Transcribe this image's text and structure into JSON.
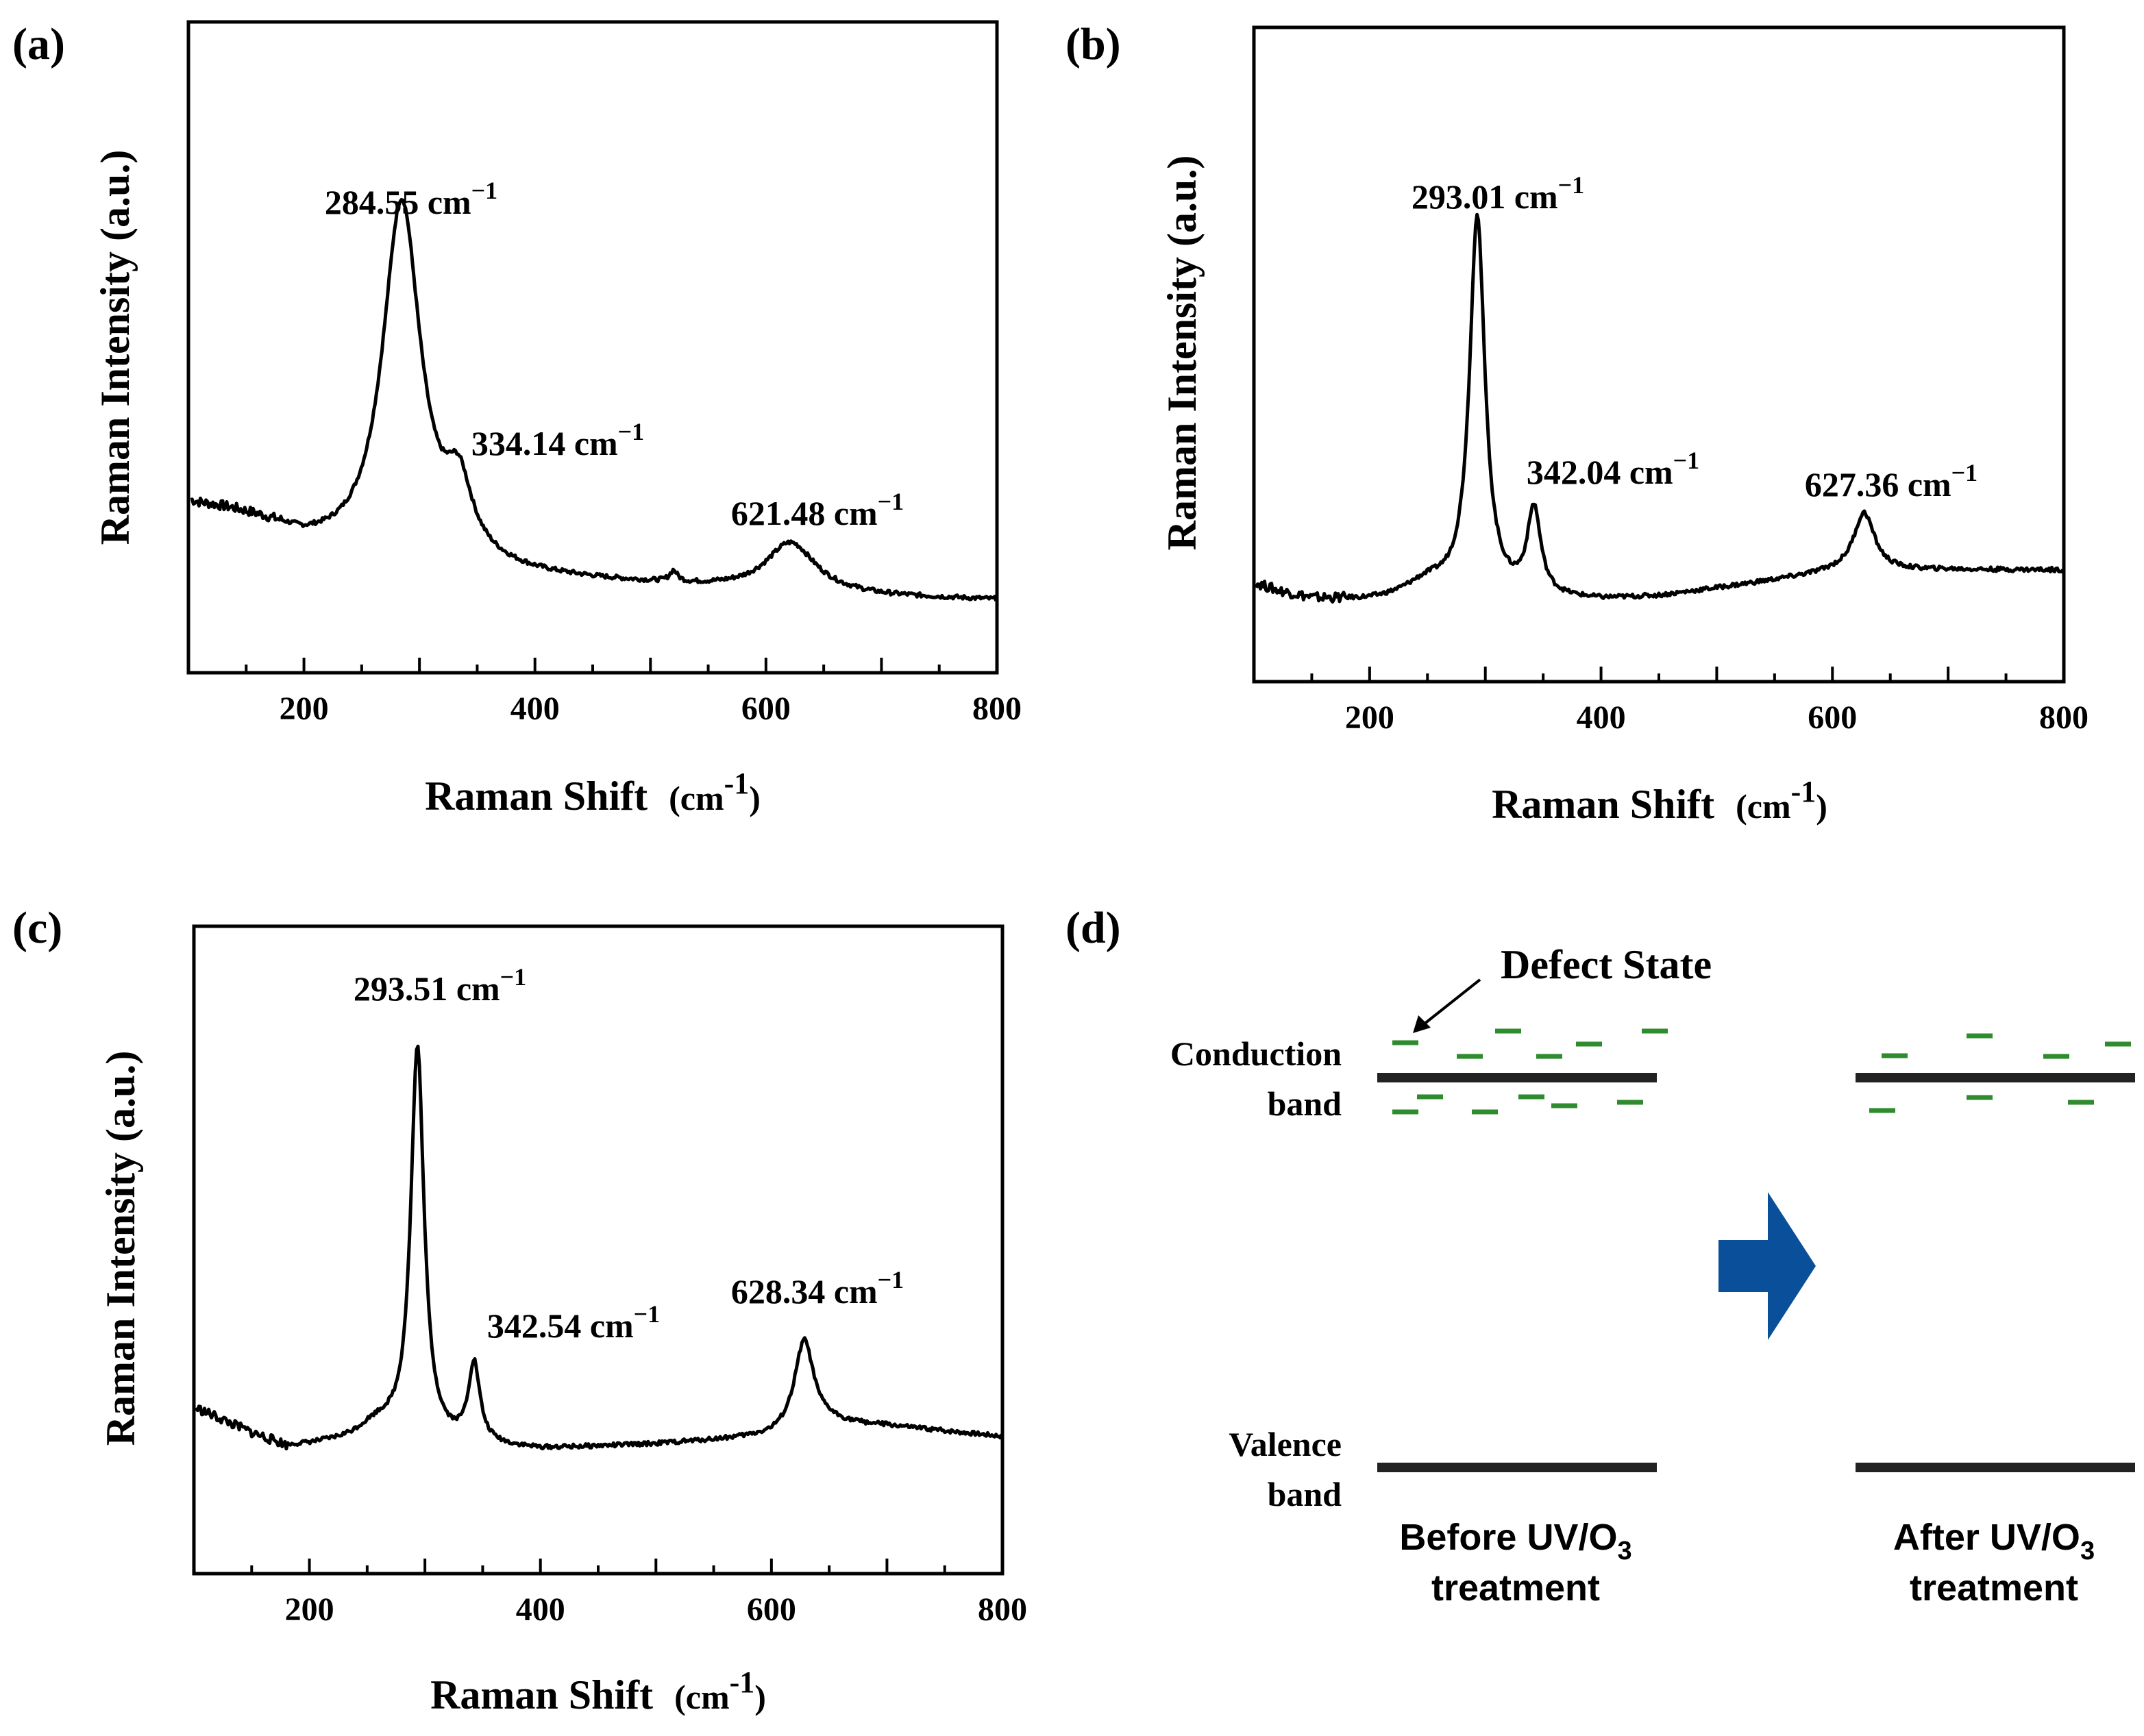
{
  "chart_data": [
    {
      "type": "line",
      "panel_label": "(a)",
      "xlabel": "Raman Shift",
      "xlabel_unit_open": "(cm",
      "xlabel_unit_exp": "-1",
      "xlabel_unit_close": ")",
      "ylabel": "Raman Intensity (a.u.)",
      "xlim": [
        100,
        800
      ],
      "ylim": [
        0,
        1
      ],
      "xticks": [
        200,
        400,
        600,
        800
      ],
      "xtick_labels": [
        "200",
        "400",
        "600",
        "800"
      ],
      "baseline": [
        [
          100,
          0.2
        ],
        [
          110,
          0.19
        ],
        [
          130,
          0.175
        ],
        [
          150,
          0.16
        ],
        [
          200,
          0.125
        ],
        [
          250,
          0.115
        ],
        [
          300,
          0.11
        ],
        [
          400,
          0.095
        ],
        [
          500,
          0.085
        ],
        [
          600,
          0.075
        ],
        [
          700,
          0.065
        ],
        [
          800,
          0.06
        ]
      ],
      "peaks": [
        {
          "center": 284.55,
          "height": 0.66,
          "width": 20,
          "label": "284.55 cm",
          "exp": "−1"
        },
        {
          "center": 334.14,
          "height": 0.12,
          "width": 14,
          "label": "334.14 cm",
          "exp": "−1"
        },
        {
          "center": 621.48,
          "height": 0.09,
          "width": 26,
          "label": "621.48 cm",
          "exp": "−1"
        }
      ],
      "extras": [
        {
          "center": 150,
          "height": 0.05,
          "width": 90
        },
        {
          "center": 520,
          "height": 0.02,
          "width": 4
        }
      ]
    },
    {
      "type": "line",
      "panel_label": "(b)",
      "xlabel": "Raman Shift",
      "xlabel_unit_open": "(cm",
      "xlabel_unit_exp": "-1",
      "xlabel_unit_close": ")",
      "ylabel": "Raman Intensity (a.u.)",
      "xlim": [
        100,
        800
      ],
      "ylim": [
        0,
        1
      ],
      "xticks": [
        200,
        400,
        600,
        800
      ],
      "xtick_labels": [
        "200",
        "400",
        "600",
        "800"
      ],
      "baseline": [
        [
          100,
          0.11
        ],
        [
          120,
          0.095
        ],
        [
          150,
          0.08
        ],
        [
          200,
          0.075
        ],
        [
          250,
          0.078
        ],
        [
          300,
          0.08
        ],
        [
          400,
          0.078
        ],
        [
          450,
          0.085
        ],
        [
          500,
          0.1
        ],
        [
          550,
          0.115
        ],
        [
          600,
          0.13
        ],
        [
          700,
          0.135
        ],
        [
          800,
          0.135
        ]
      ],
      "peaks": [
        {
          "center": 293.01,
          "height": 0.71,
          "width": 8,
          "label": "293.01 cm",
          "exp": "−1"
        },
        {
          "center": 342.04,
          "height": 0.16,
          "width": 7,
          "label": "342.04 cm",
          "exp": "−1"
        },
        {
          "center": 627.36,
          "height": 0.11,
          "width": 11,
          "label": "627.36 cm",
          "exp": "−1"
        }
      ],
      "extras": [
        {
          "center": 250,
          "height": 0.03,
          "width": 25
        }
      ]
    },
    {
      "type": "line",
      "panel_label": "(c)",
      "xlabel": "Raman Shift",
      "xlabel_unit_open": "(cm",
      "xlabel_unit_exp": "-1",
      "xlabel_unit_close": ")",
      "ylabel": "Raman Intensity (a.u.)",
      "xlim": [
        100,
        800
      ],
      "ylim": [
        0,
        1
      ],
      "xticks": [
        200,
        400,
        600,
        800
      ],
      "xtick_labels": [
        "200",
        "400",
        "600",
        "800"
      ],
      "baseline": [
        [
          100,
          0.23
        ],
        [
          120,
          0.21
        ],
        [
          150,
          0.18
        ],
        [
          180,
          0.155
        ],
        [
          250,
          0.165
        ],
        [
          300,
          0.16
        ],
        [
          400,
          0.15
        ],
        [
          500,
          0.16
        ],
        [
          600,
          0.175
        ],
        [
          650,
          0.2
        ],
        [
          700,
          0.195
        ],
        [
          800,
          0.175
        ]
      ],
      "peaks": [
        {
          "center": 293.51,
          "height": 0.75,
          "width": 7,
          "label": "293.51 cm",
          "exp": "−1"
        },
        {
          "center": 342.54,
          "height": 0.15,
          "width": 6,
          "label": "342.54 cm",
          "exp": "−1"
        },
        {
          "center": 628.34,
          "height": 0.17,
          "width": 10,
          "label": "628.34 cm",
          "exp": "−1"
        }
      ],
      "extras": [
        {
          "center": 260,
          "height": 0.03,
          "width": 20
        }
      ]
    }
  ],
  "diagram": {
    "panel_label": "(d)",
    "defect_state_label": "Defect State",
    "conduction_label": [
      "Conduction",
      "band"
    ],
    "valence_label": [
      "Valence",
      "band"
    ],
    "before_label": {
      "line1_a": "Before UV/O",
      "line1_sub": "3",
      "line2": "treatment"
    },
    "after_label": {
      "line1_a": "After UV/O",
      "line1_sub": "3",
      "line2": "treatment"
    },
    "band_color": "#222222",
    "defect_color": "#2e8b2e",
    "arrow_color": "#0a4f9a"
  }
}
